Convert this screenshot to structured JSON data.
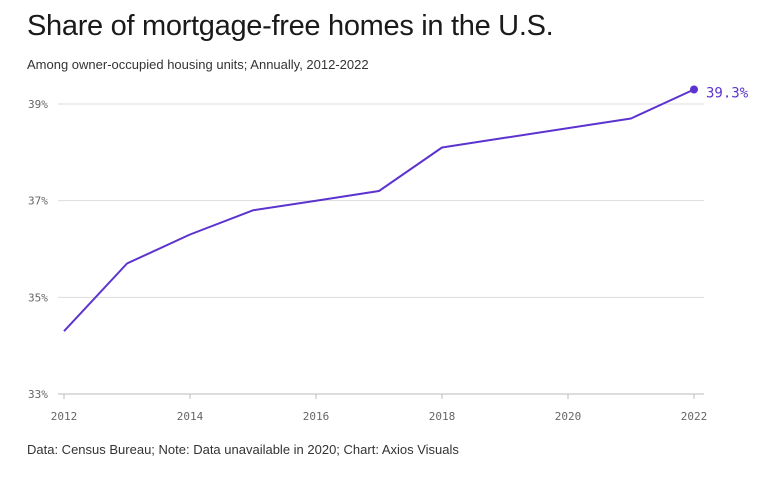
{
  "title": "Share of mortgage-free homes in the U.S.",
  "subtitle": "Among owner-occupied housing units; Annually, 2012-2022",
  "source": "Data: Census Bureau; Note: Data unavailable in 2020; Chart: Axios Visuals",
  "end_label": "39.3%",
  "colors": {
    "line": "#5c33cf",
    "grid": "#dddddd",
    "axis": "#bbbbbb"
  },
  "chart_data": {
    "type": "line",
    "title": "Share of mortgage-free homes in the U.S.",
    "subtitle": "Among owner-occupied housing units; Annually, 2012-2022",
    "xlabel": "",
    "ylabel": "",
    "x": [
      2012,
      2013,
      2014,
      2015,
      2016,
      2017,
      2018,
      2019,
      2021,
      2022
    ],
    "values": [
      34.3,
      35.7,
      36.3,
      36.8,
      37.0,
      37.2,
      38.1,
      38.3,
      38.7,
      39.3
    ],
    "xlim": [
      2012,
      2022
    ],
    "ylim": [
      33,
      39
    ],
    "x_ticks": [
      2012,
      2014,
      2016,
      2018,
      2020,
      2022
    ],
    "x_tick_labels": [
      "2012",
      "2014",
      "2016",
      "2018",
      "2020",
      "2022"
    ],
    "y_ticks": [
      33,
      35,
      37,
      39
    ],
    "y_tick_labels": [
      "33%",
      "35%",
      "37%",
      "39%"
    ],
    "grid": true,
    "legend": "none"
  }
}
